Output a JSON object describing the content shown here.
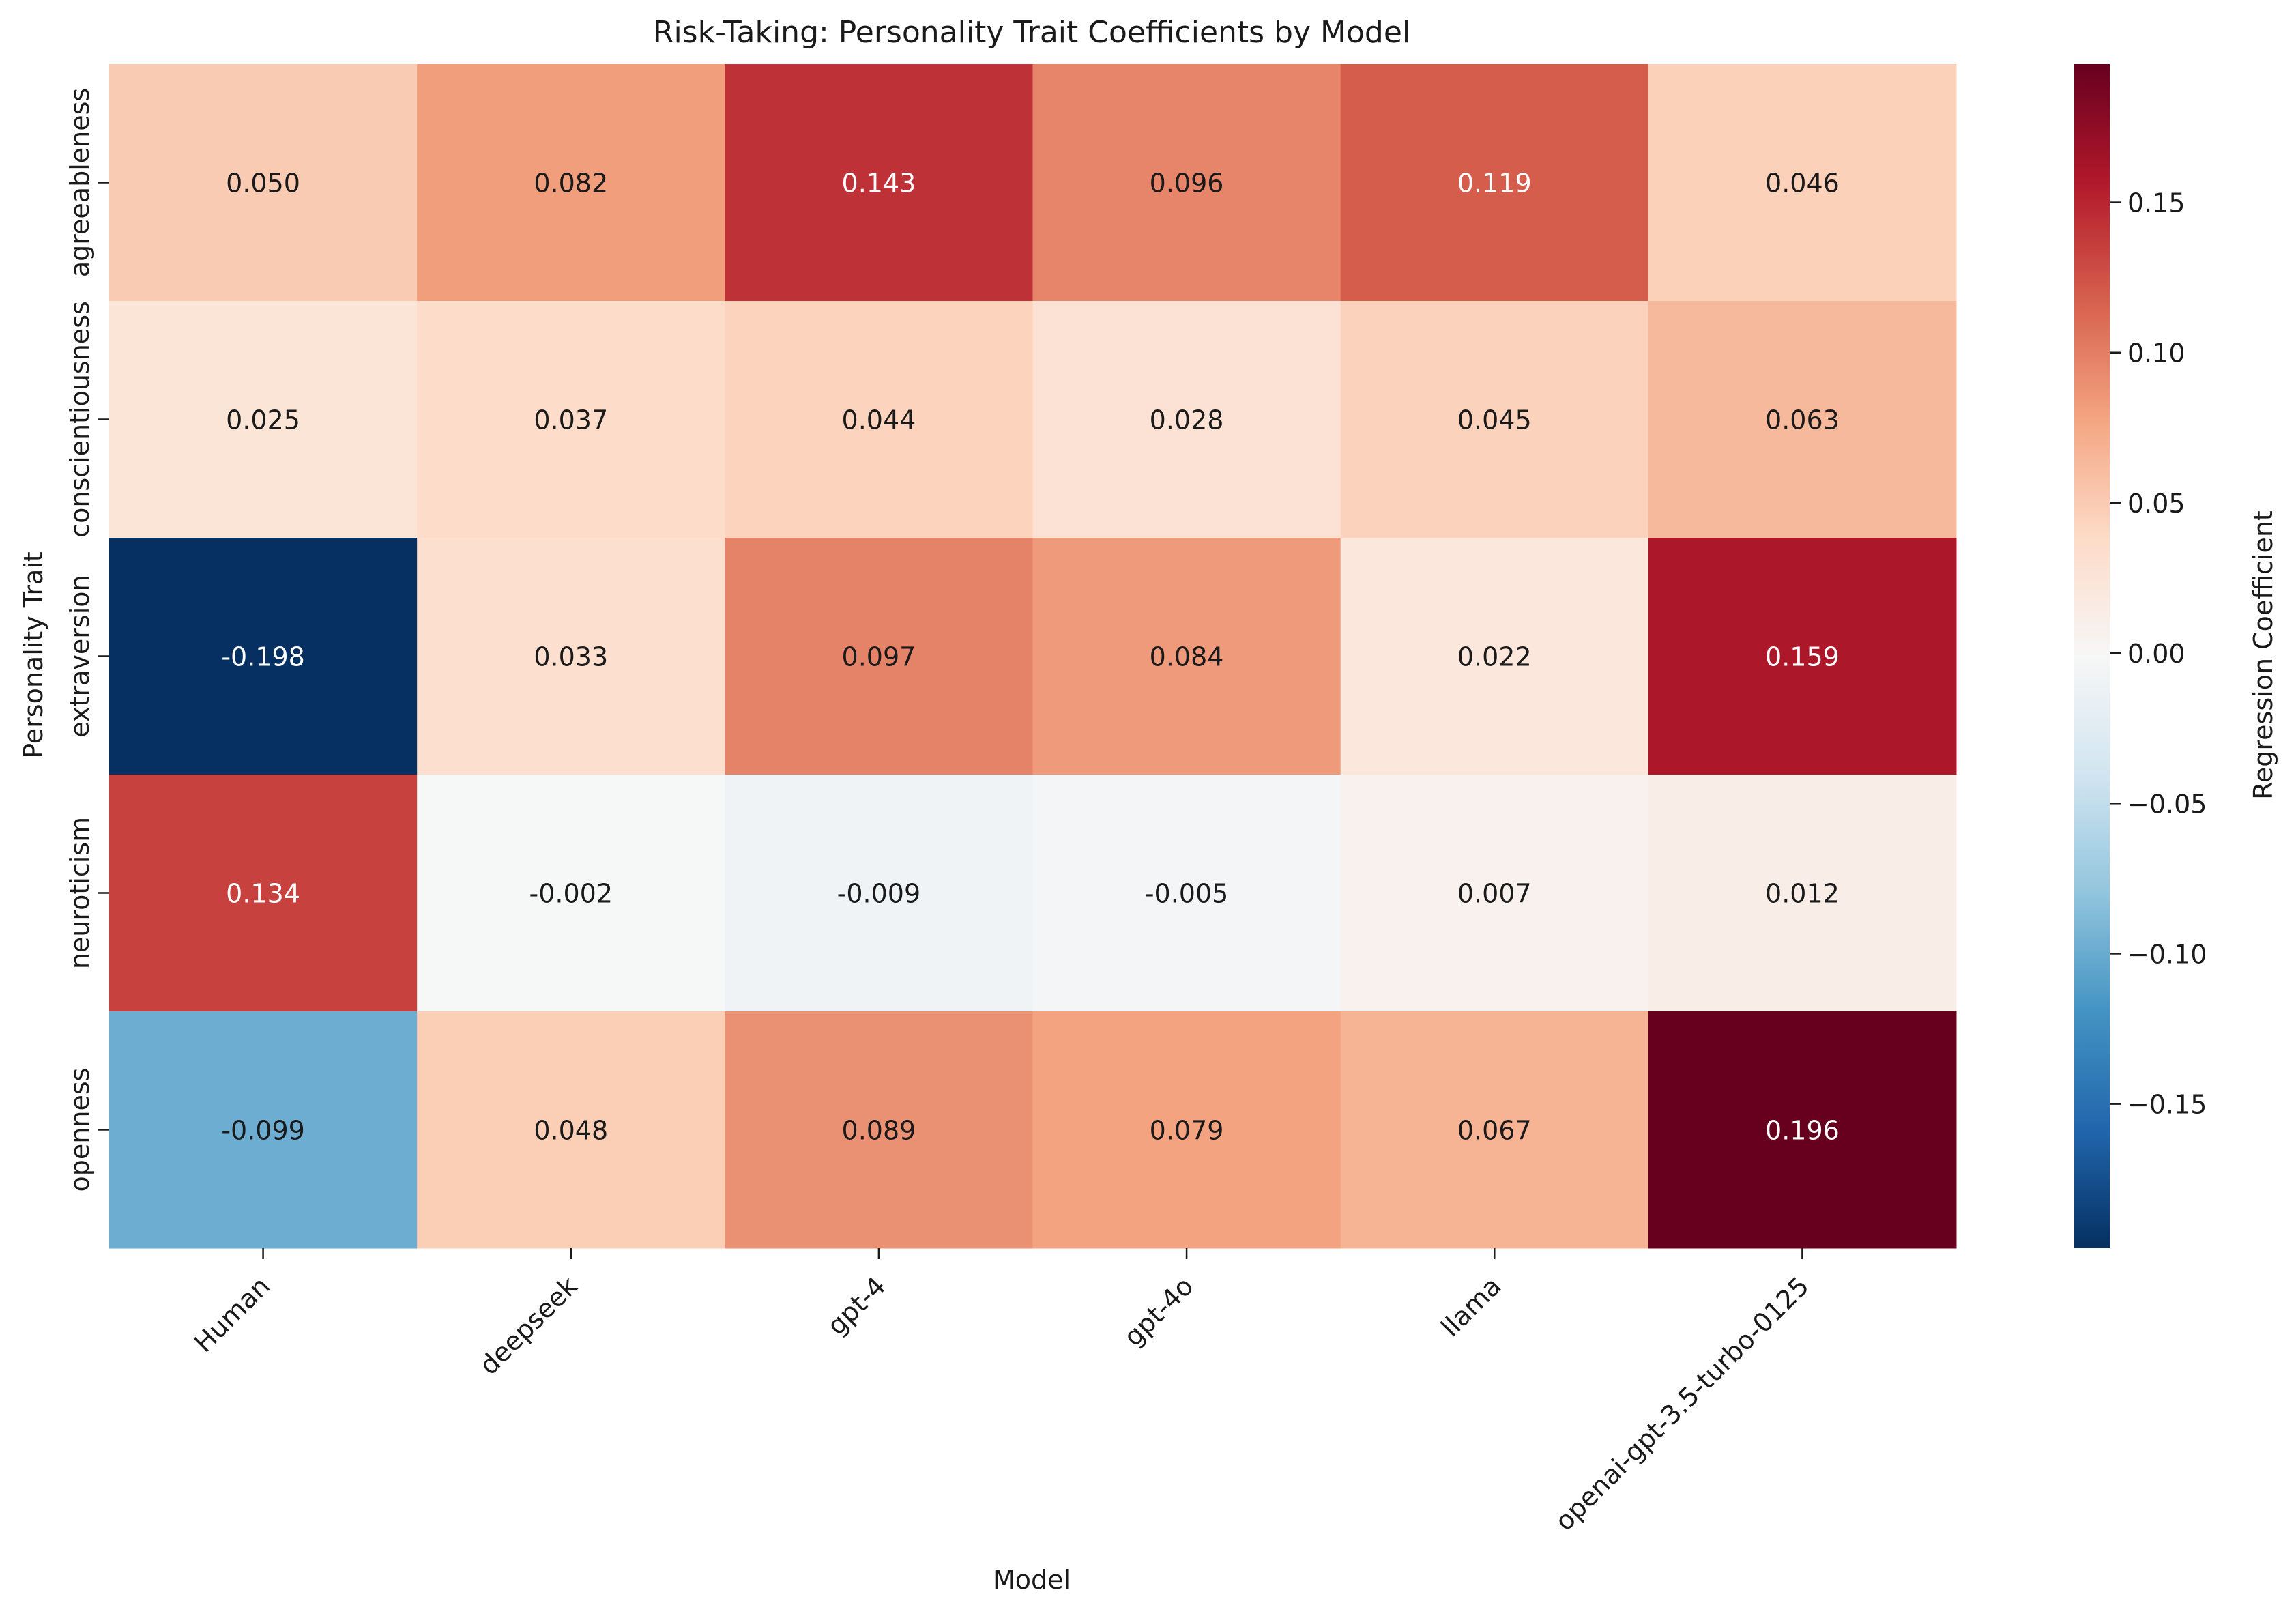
{
  "chart_data": {
    "type": "heatmap",
    "title": "Risk-Taking: Personality Trait Coefficients by Model",
    "xlabel": "Model",
    "ylabel": "Personality Trait",
    "columns": [
      "Human",
      "deepseek",
      "gpt-4",
      "gpt-4o",
      "llama",
      "openai-gpt-3.5-turbo-0125"
    ],
    "rows": [
      "agreeableness",
      "conscientiousness",
      "extraversion",
      "neuroticism",
      "openness"
    ],
    "values": [
      [
        0.05,
        0.082,
        0.143,
        0.096,
        0.119,
        0.046
      ],
      [
        0.025,
        0.037,
        0.044,
        0.028,
        0.045,
        0.063
      ],
      [
        -0.198,
        0.033,
        0.097,
        0.084,
        0.022,
        0.159
      ],
      [
        0.134,
        -0.002,
        -0.009,
        -0.005,
        0.007,
        0.012
      ],
      [
        -0.099,
        0.048,
        0.089,
        0.079,
        0.067,
        0.196
      ]
    ],
    "cell_labels": [
      [
        "0.050",
        "0.082",
        "0.143",
        "0.096",
        "0.119",
        "0.046"
      ],
      [
        "0.025",
        "0.037",
        "0.044",
        "0.028",
        "0.045",
        "0.063"
      ],
      [
        "-0.198",
        "0.033",
        "0.097",
        "0.084",
        "0.022",
        "0.159"
      ],
      [
        "0.134",
        "-0.002",
        "-0.009",
        "-0.005",
        "0.007",
        "0.012"
      ],
      [
        "-0.099",
        "0.048",
        "0.089",
        "0.079",
        "0.067",
        "0.196"
      ]
    ],
    "colorbar": {
      "label": "Regression Coefficient",
      "colormap": "RdBu_r",
      "range": [
        -0.198,
        0.196
      ],
      "ticks": [
        -0.15,
        -0.1,
        -0.05,
        0.0,
        0.05,
        0.1,
        0.15
      ],
      "tick_labels": [
        "−0.15",
        "−0.10",
        "−0.05",
        "0.00",
        "0.05",
        "0.10",
        "0.15"
      ]
    },
    "colormap_stops": [
      "#053061",
      "#2166ac",
      "#4393c3",
      "#92c5de",
      "#d1e5f0",
      "#f7f7f7",
      "#fddbc7",
      "#f4a582",
      "#d6604d",
      "#b2182b",
      "#67001f"
    ]
  }
}
